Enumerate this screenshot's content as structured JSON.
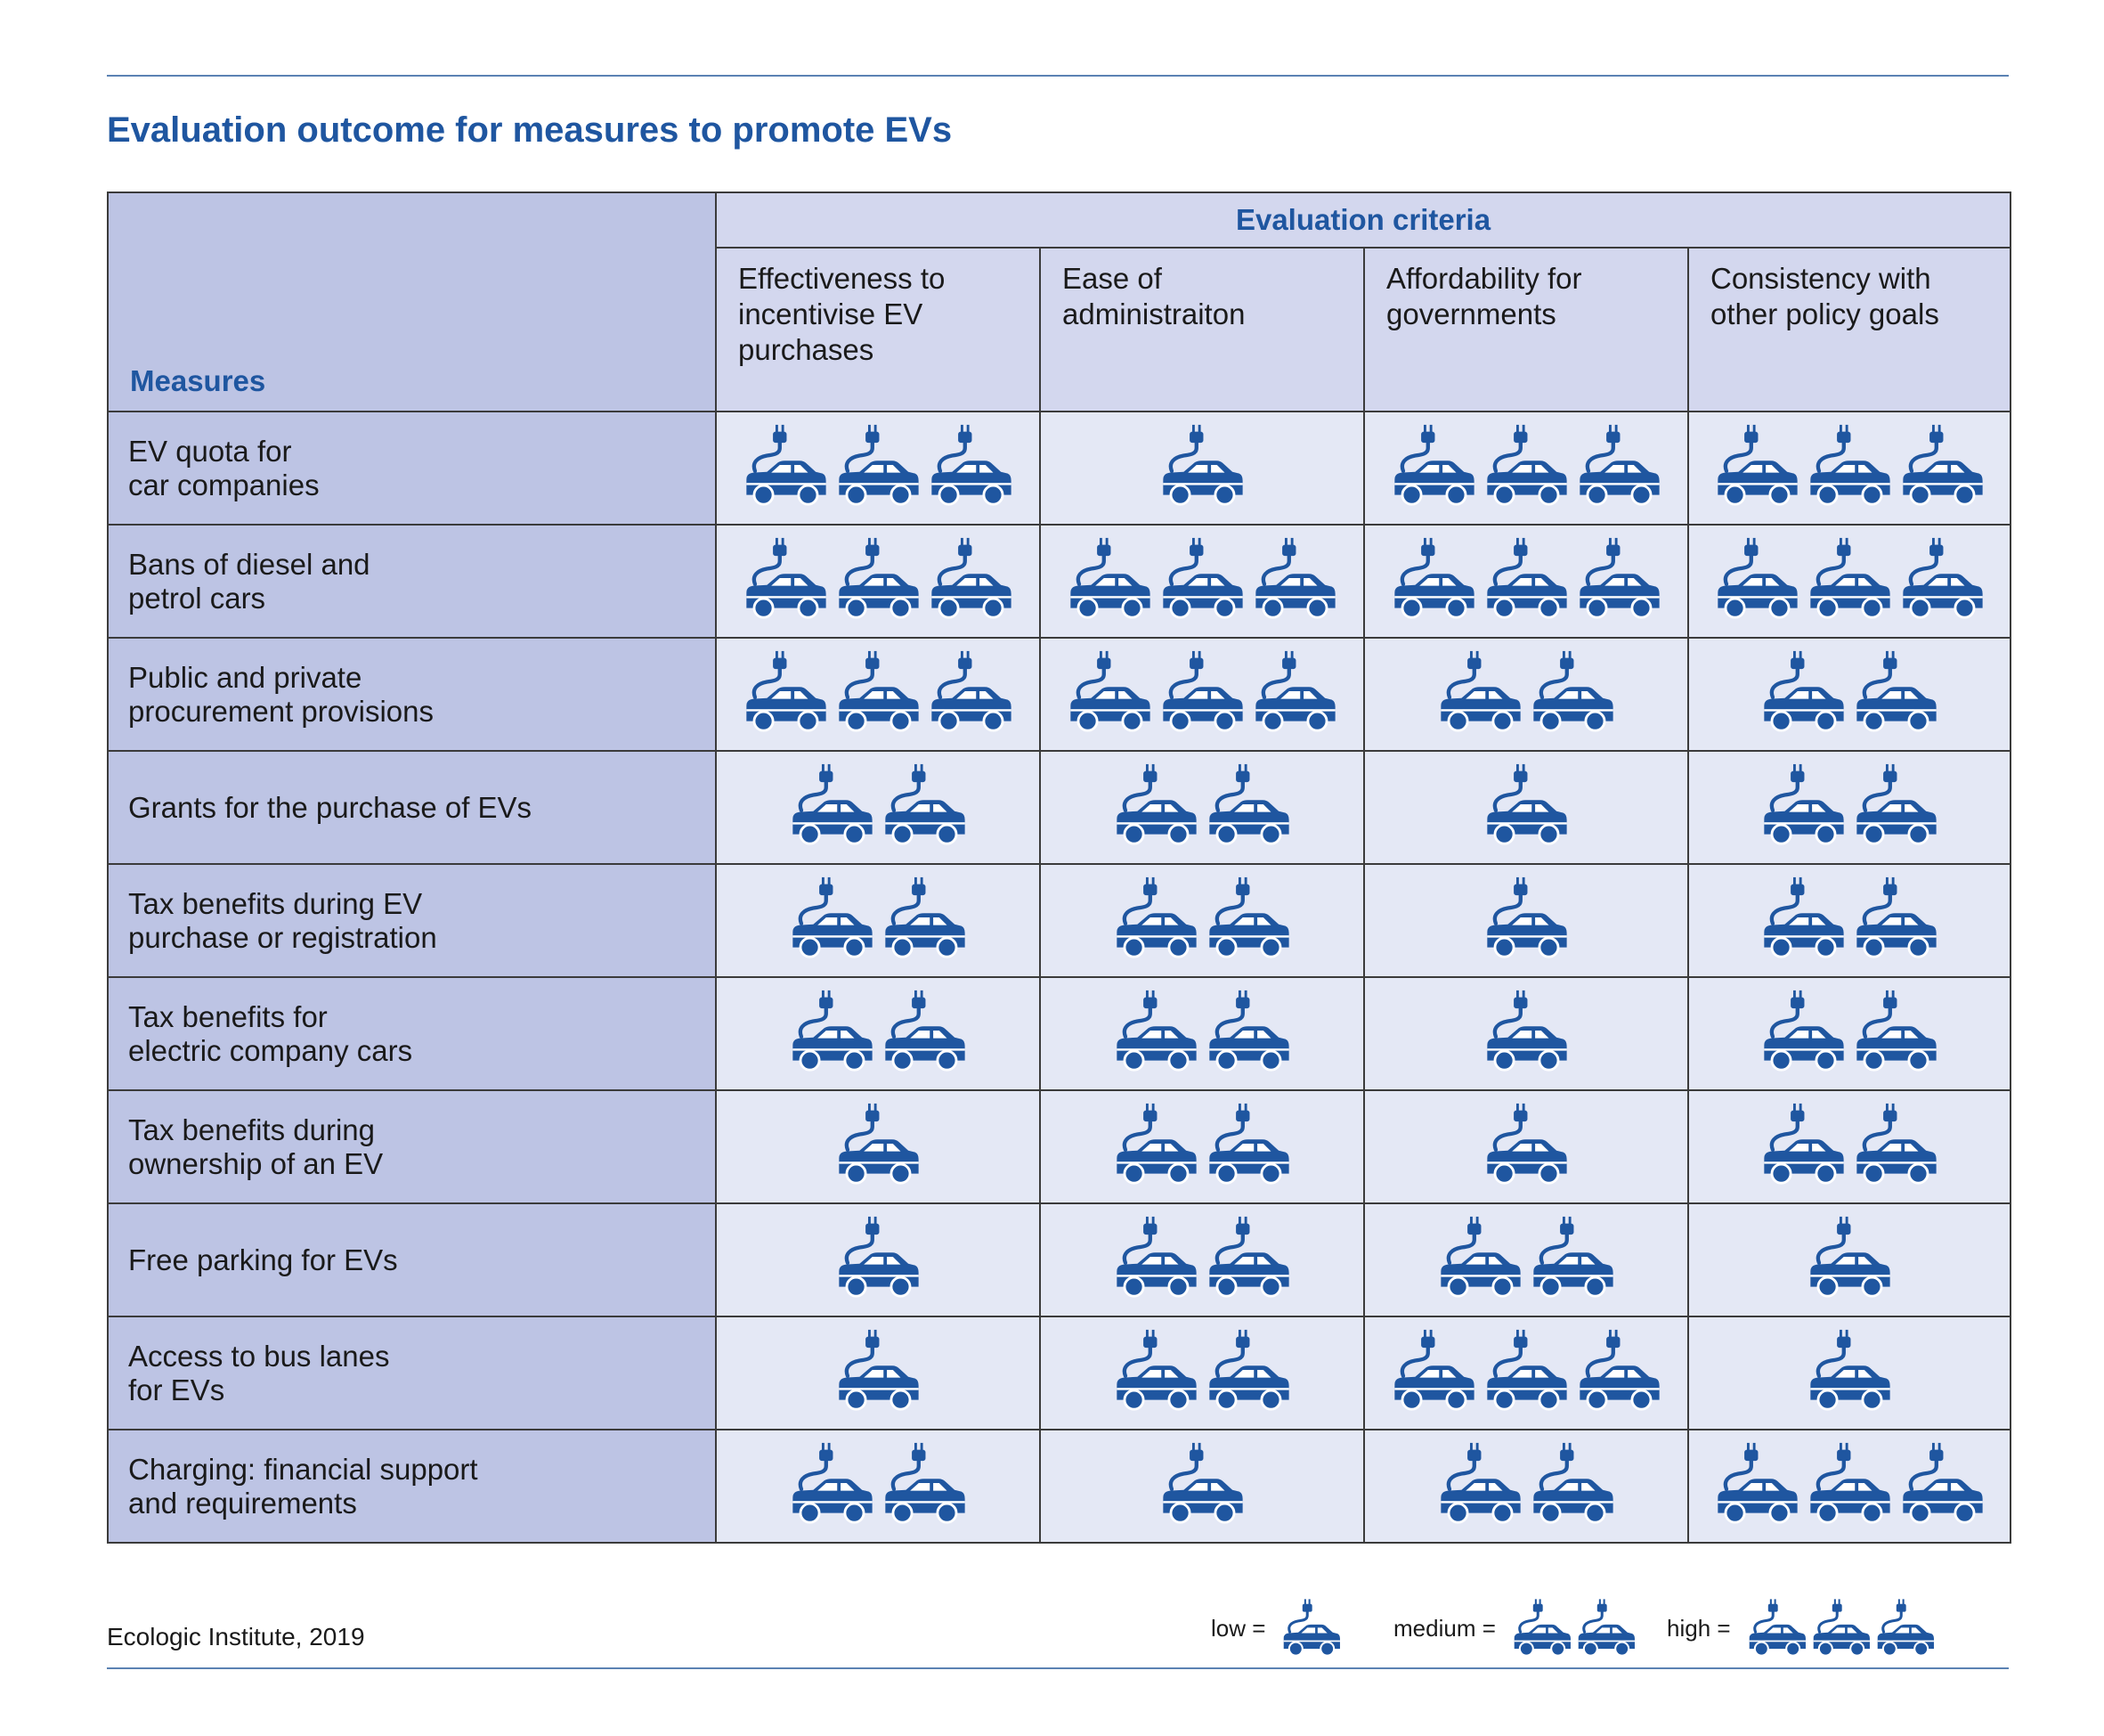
{
  "title": "Evaluation outcome for measures to promote EVs",
  "table": {
    "measures_header": "Measures",
    "criteria_header": "Evaluation criteria",
    "criteria": [
      "Effectiveness to\nincentivise EV\npurchases",
      "Ease of\nadministraiton",
      "Affordability for\ngovernments",
      "Consistency with\nother policy goals"
    ]
  },
  "source": "Ecologic Institute, 2019",
  "legend": {
    "low": "low =",
    "medium": "medium =",
    "high": "high ="
  },
  "icon": "electric-car-with-plug-icon",
  "colors": {
    "accent": "#1f56a0",
    "measure_bg": "#bdc4e4",
    "header_bg": "#d3d7ee",
    "cell_bg": "#e4e8f5",
    "rule": "#5b82b3"
  },
  "chart_data": {
    "type": "table",
    "scale": {
      "1": "low",
      "2": "medium",
      "3": "high"
    },
    "columns": [
      "Effectiveness to incentivise EV purchases",
      "Ease of administraiton",
      "Affordability for governments",
      "Consistency with other policy goals"
    ],
    "rows": [
      {
        "measure": "EV quota for\ncar companies",
        "values": [
          3,
          1,
          3,
          3
        ]
      },
      {
        "measure": "Bans of diesel and\npetrol cars",
        "values": [
          3,
          3,
          3,
          3
        ]
      },
      {
        "measure": "Public and private\nprocurement provisions",
        "values": [
          3,
          3,
          2,
          2
        ]
      },
      {
        "measure": "Grants for the purchase of EVs",
        "values": [
          2,
          2,
          1,
          2
        ]
      },
      {
        "measure": "Tax benefits during EV\npurchase or registration",
        "values": [
          2,
          2,
          1,
          2
        ]
      },
      {
        "measure": "Tax benefits for\nelectric company cars",
        "values": [
          2,
          2,
          1,
          2
        ]
      },
      {
        "measure": "Tax benefits during\nownership of an EV",
        "values": [
          1,
          2,
          1,
          2
        ]
      },
      {
        "measure": "Free parking for EVs",
        "values": [
          1,
          2,
          2,
          1
        ]
      },
      {
        "measure": "Access to bus lanes\nfor EVs",
        "values": [
          1,
          2,
          3,
          1
        ]
      },
      {
        "measure": "Charging: financial support\nand requirements",
        "values": [
          2,
          1,
          2,
          3
        ]
      }
    ]
  }
}
